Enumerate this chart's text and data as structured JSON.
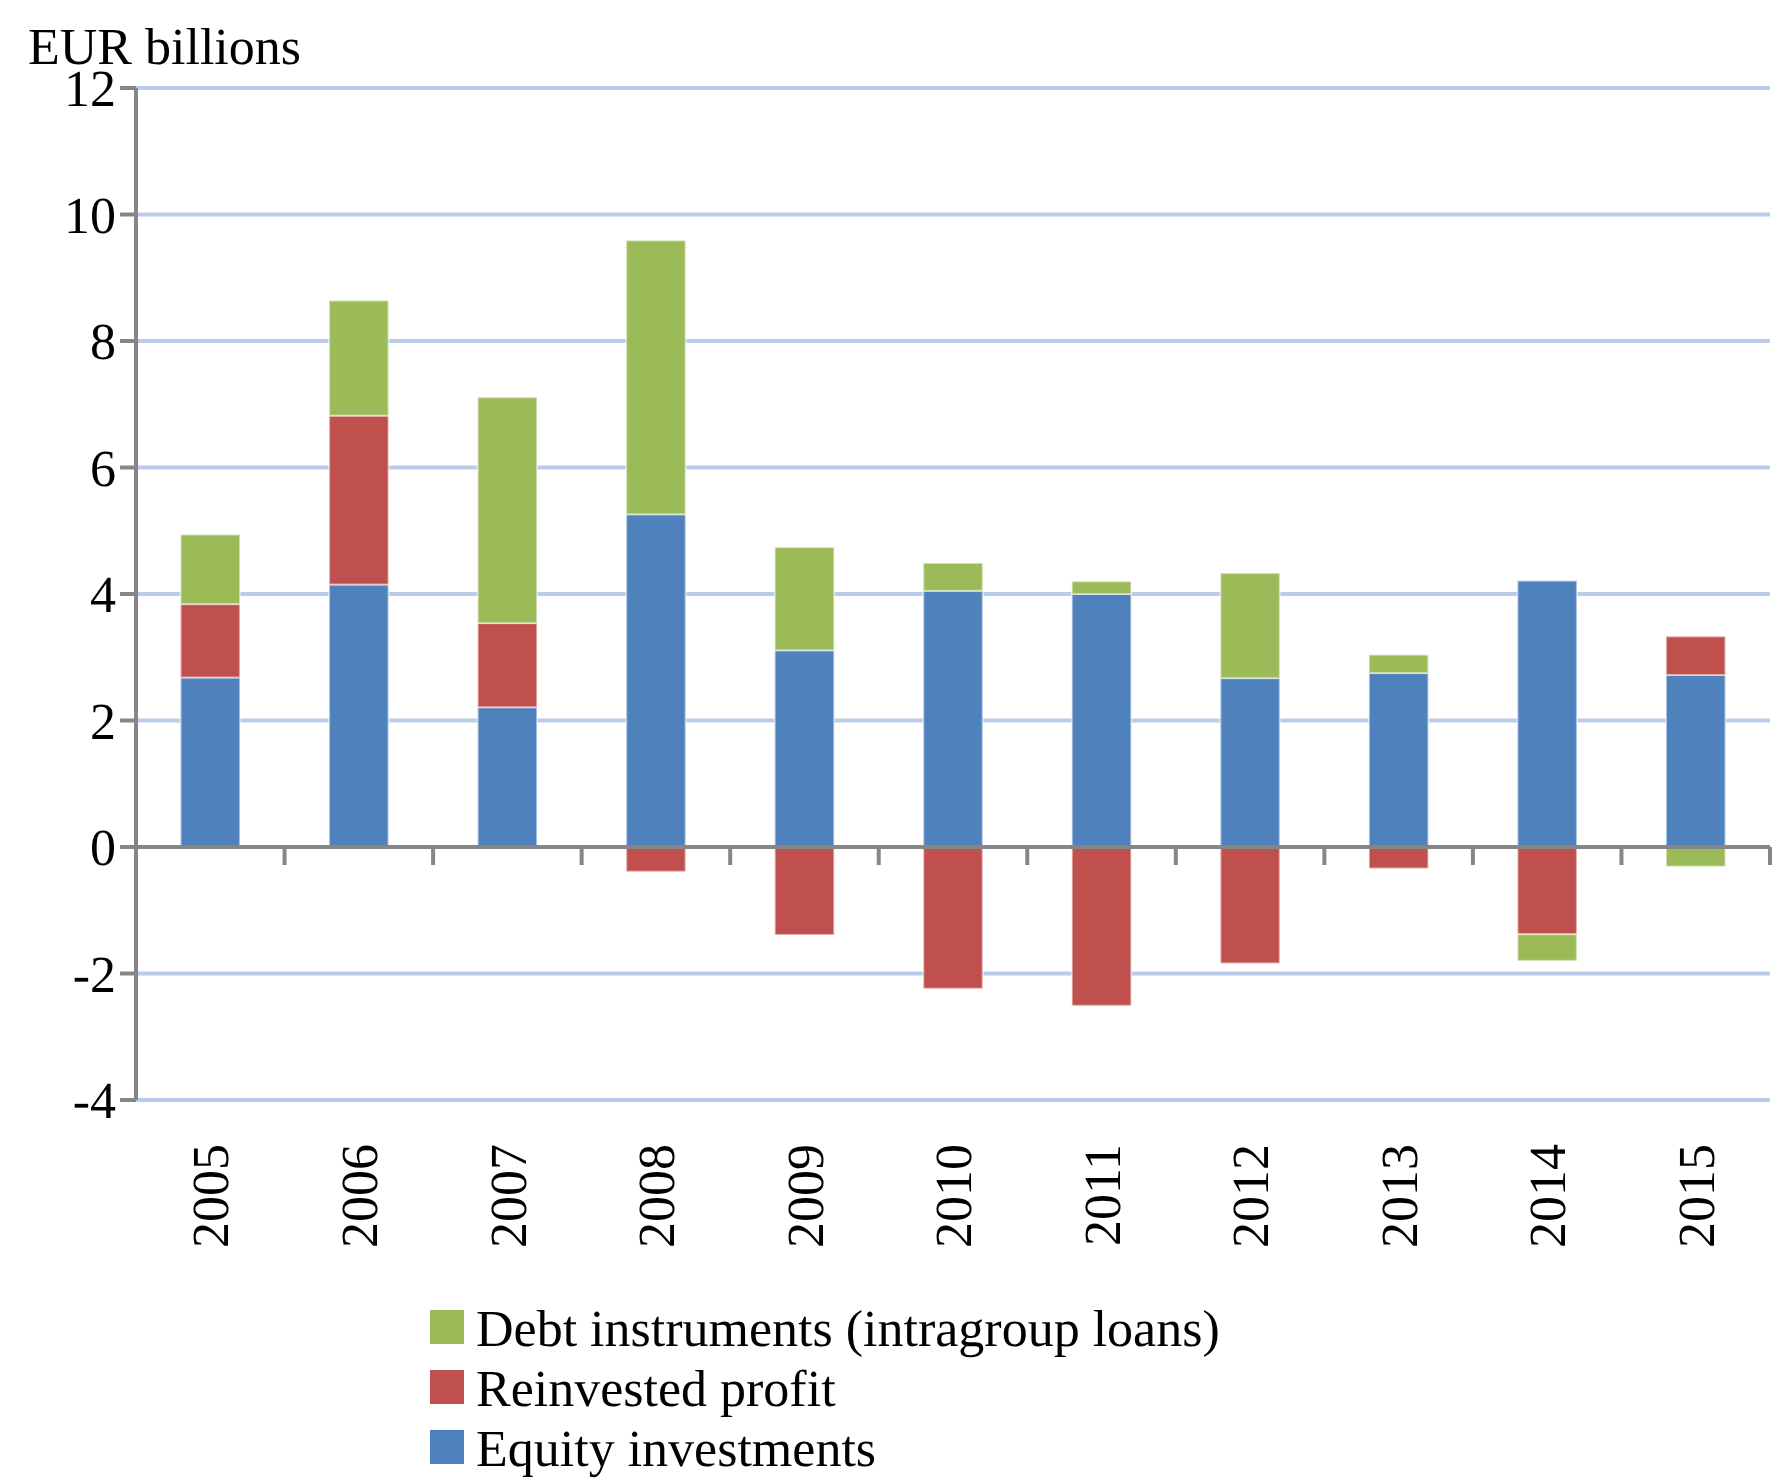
{
  "chart_data": {
    "type": "bar",
    "stacked": true,
    "ylabel": "EUR billions",
    "categories": [
      "2005",
      "2006",
      "2007",
      "2008",
      "2009",
      "2010",
      "2011",
      "2012",
      "2013",
      "2014",
      "2015"
    ],
    "series": [
      {
        "name": "Equity investments",
        "color": "#4f81bd",
        "values": [
          2.68,
          4.15,
          2.21,
          5.26,
          3.11,
          4.05,
          4.0,
          2.67,
          2.75,
          4.21,
          2.72
        ]
      },
      {
        "name": "Reinvested profit",
        "color": "#c0504d",
        "values": [
          1.16,
          2.67,
          1.33,
          -0.39,
          -1.39,
          -2.24,
          -2.51,
          -1.84,
          -0.34,
          -1.38,
          0.61
        ]
      },
      {
        "name": "Debt instruments (intragroup loans)",
        "color": "#9bbb59",
        "values": [
          1.1,
          1.82,
          3.57,
          4.33,
          1.63,
          0.44,
          0.2,
          1.66,
          0.29,
          -0.42,
          -0.31
        ]
      }
    ],
    "ylim": [
      -4,
      12
    ],
    "yticks": [
      -4,
      -2,
      0,
      2,
      4,
      6,
      8,
      10,
      12
    ],
    "grid": "y",
    "legend": "bottom"
  }
}
